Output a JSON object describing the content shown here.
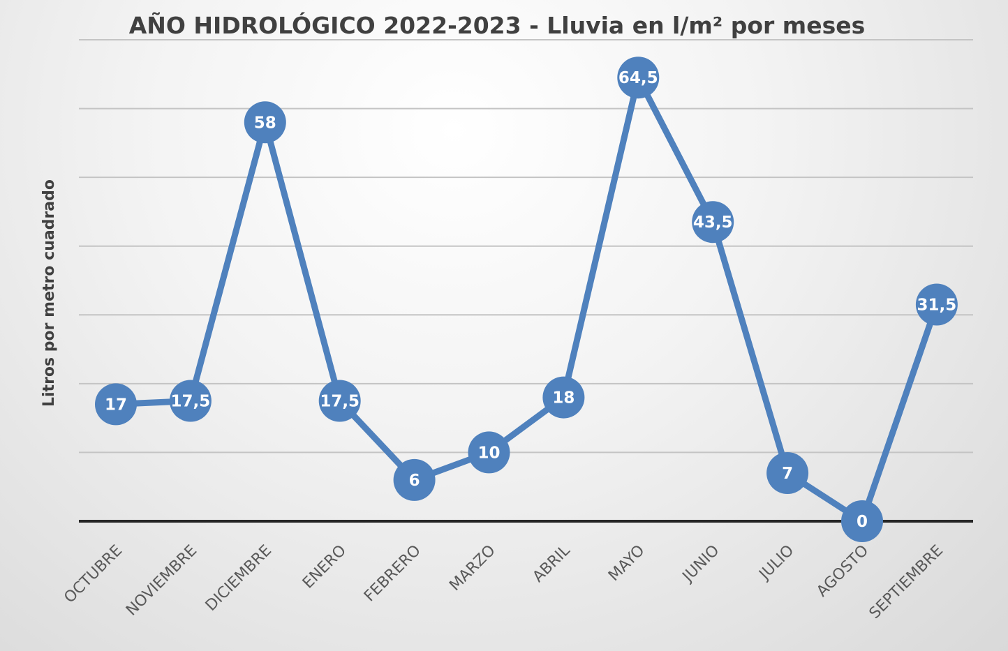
{
  "chart_data": {
    "type": "line",
    "title": "AÑO HIDROLÓGICO 2022-2023 - Lluvia en l/m² por meses",
    "xlabel": "",
    "ylabel": "Litros por metro cuadrado",
    "categories": [
      "OCTUBRE",
      "NOVIEMBRE",
      "DICIEMBRE",
      "ENERO",
      "FEBRERO",
      "MARZO",
      "ABRIL",
      "MAYO",
      "JUNIO",
      "JULIO",
      "AGOSTO",
      "SEPTIEMBRE"
    ],
    "series": [
      {
        "values": [
          17,
          17.5,
          58,
          17.5,
          6,
          10,
          18,
          64.5,
          43.5,
          7,
          0,
          31.5
        ],
        "data_labels": [
          "17",
          "17,5",
          "58",
          "17,5",
          "6",
          "10",
          "18",
          "64,5",
          "43,5",
          "7",
          "0",
          "31,5"
        ]
      }
    ],
    "ylim": [
      0,
      70
    ],
    "ytick_step": 10,
    "grid": true,
    "legend": "none",
    "colors": {
      "series": "#4f81bd",
      "grid": "#c4c4c4",
      "axis": "#262626",
      "text": "#404040"
    }
  }
}
